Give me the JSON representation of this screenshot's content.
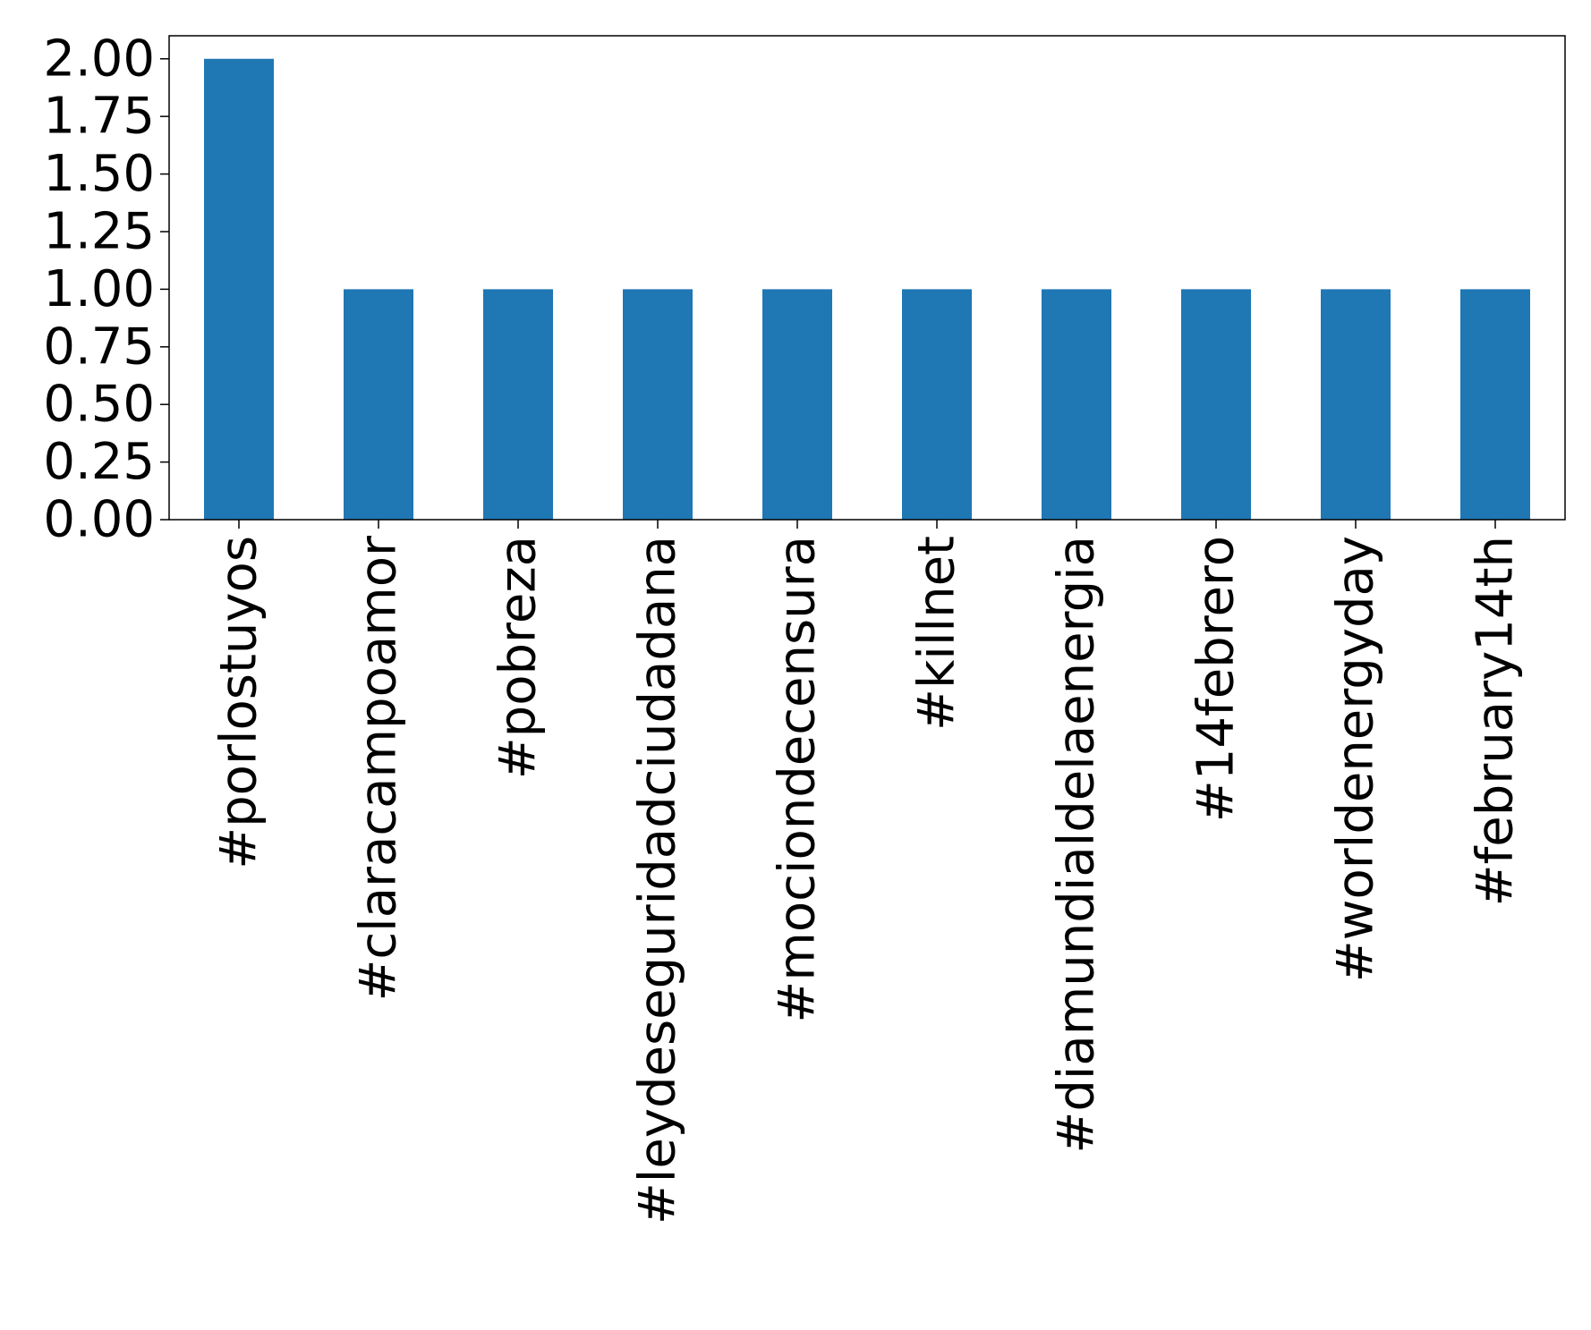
{
  "chart_data": {
    "type": "bar",
    "title": "",
    "xlabel": "",
    "ylabel": "",
    "categories": [
      "#porlostuyos",
      "#claracampoamor",
      "#pobreza",
      "#leydeseguridadciudadana",
      "#mociondecensura",
      "#killnet",
      "#diamundialdelaenergia",
      "#14febrero",
      "#worldenergyday",
      "#february14th"
    ],
    "values": [
      2,
      1,
      1,
      1,
      1,
      1,
      1,
      1,
      1,
      1
    ],
    "ylim": [
      0,
      2.1
    ],
    "yticks": [
      "0.00",
      "0.25",
      "0.50",
      "0.75",
      "1.00",
      "1.25",
      "1.50",
      "1.75",
      "2.00"
    ],
    "bar_color": "#1f77b4",
    "grid": false,
    "legend": "none"
  }
}
